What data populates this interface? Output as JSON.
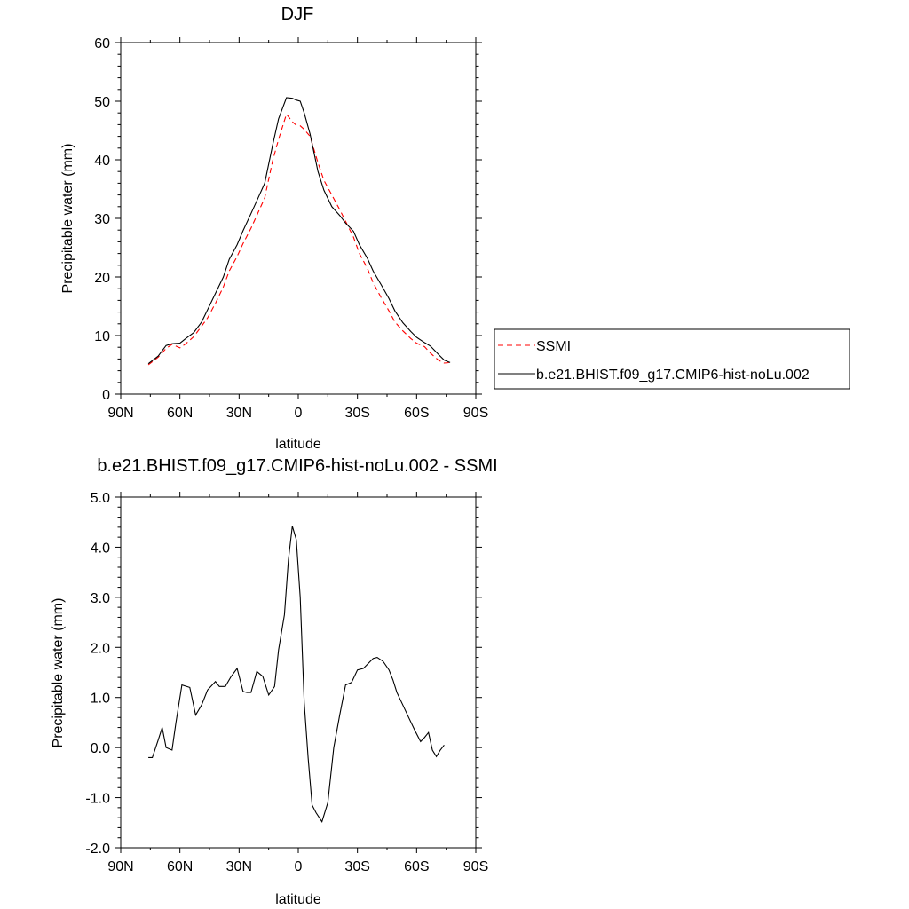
{
  "chart_data": [
    {
      "type": "line",
      "title": "DJF",
      "xlabel": "latitude",
      "ylabel": "Precipitable water (mm)",
      "xlim": [
        90,
        -90
      ],
      "ylim": [
        0,
        60
      ],
      "x_ticks": [
        90,
        60,
        30,
        0,
        -30,
        -60,
        -90
      ],
      "x_tick_labels": [
        "90N",
        "60N",
        "30N",
        "0",
        "30S",
        "60S",
        "90S"
      ],
      "y_ticks": [
        0,
        10,
        20,
        30,
        40,
        50,
        60
      ],
      "y_tick_labels": [
        "0",
        "10",
        "20",
        "30",
        "40",
        "50",
        "60"
      ],
      "legend": "right",
      "grid": false,
      "series": [
        {
          "name": "SSMI",
          "color": "#ff0000",
          "dash": "dashed",
          "x": [
            76,
            71,
            67,
            64,
            60,
            57,
            53,
            49,
            46,
            42,
            38,
            35,
            31,
            28,
            24,
            21,
            17,
            13,
            10,
            6,
            3,
            1,
            -1,
            -3,
            -6,
            -10,
            -13,
            -17,
            -21,
            -24,
            -28,
            -31,
            -35,
            -38,
            -42,
            -46,
            -49,
            -53,
            -57,
            -60,
            -64,
            -67,
            -71,
            -74,
            -77
          ],
          "y": [
            5.0,
            6.3,
            7.8,
            8.5,
            7.9,
            8.6,
            9.8,
            11.6,
            13.0,
            15.5,
            18.3,
            21.0,
            23.5,
            25.7,
            28.3,
            30.5,
            33.5,
            39.8,
            43.5,
            47.8,
            46.5,
            45.9,
            45.8,
            45.2,
            44.0,
            39.5,
            36.5,
            34.0,
            31.5,
            29.5,
            26.8,
            24.0,
            21.5,
            19.0,
            16.5,
            14.2,
            12.3,
            10.8,
            9.5,
            8.7,
            8.1,
            7.0,
            5.8,
            5.3,
            5.4
          ]
        },
        {
          "name": "b.e21.BHIST.f09_g17.CMIP6-hist-noLu.002",
          "color": "#000000",
          "dash": "solid",
          "x": [
            76,
            71,
            67,
            64,
            60,
            57,
            53,
            49,
            46,
            42,
            38,
            35,
            31,
            28,
            24,
            21,
            17,
            13,
            10,
            6,
            3,
            1,
            -1,
            -3,
            -6,
            -10,
            -13,
            -17,
            -21,
            -24,
            -28,
            -31,
            -35,
            -38,
            -42,
            -46,
            -49,
            -53,
            -57,
            -60,
            -64,
            -67,
            -71,
            -74,
            -77
          ],
          "y": [
            5.2,
            6.5,
            8.3,
            8.6,
            8.7,
            9.5,
            10.5,
            12.3,
            14.4,
            17.2,
            20.0,
            23.0,
            25.5,
            27.9,
            30.8,
            33.0,
            36.0,
            42.5,
            47.0,
            50.6,
            50.5,
            50.2,
            50.0,
            48.0,
            44.4,
            38.0,
            34.8,
            32.0,
            30.5,
            29.2,
            27.8,
            25.5,
            23.2,
            21.0,
            18.7,
            16.3,
            14.2,
            12.2,
            10.7,
            9.7,
            8.8,
            8.2,
            6.8,
            5.8,
            5.4
          ]
        }
      ]
    },
    {
      "type": "line",
      "title": "b.e21.BHIST.f09_g17.CMIP6-hist-noLu.002 - SSMI",
      "xlabel": "latitude",
      "ylabel": "Precipitable water (mm)",
      "xlim": [
        90,
        -90
      ],
      "ylim": [
        -2.0,
        5.0
      ],
      "x_ticks": [
        90,
        60,
        30,
        0,
        -30,
        -60,
        -90
      ],
      "x_tick_labels": [
        "90N",
        "60N",
        "30N",
        "0",
        "30S",
        "60S",
        "90S"
      ],
      "y_ticks": [
        -2.0,
        -1.0,
        0.0,
        1.0,
        2.0,
        3.0,
        4.0,
        5.0
      ],
      "y_tick_labels": [
        "-2.0",
        "-1.0",
        "0.0",
        "1.0",
        "2.0",
        "3.0",
        "4.0",
        "5.0"
      ],
      "grid": false,
      "series": [
        {
          "color": "#000000",
          "dash": "solid",
          "x": [
            76,
            74,
            71,
            69,
            67,
            64,
            62,
            59,
            55,
            52,
            49,
            46,
            42,
            40,
            37,
            34,
            31,
            28,
            26,
            24,
            21,
            18,
            15,
            12,
            10,
            7,
            5,
            3,
            1,
            -1,
            -3,
            -5,
            -7,
            -9,
            -12,
            -15,
            -18,
            -21,
            -24,
            -27,
            -30,
            -33,
            -36,
            -38,
            -40,
            -43,
            -46,
            -48,
            -50,
            -53,
            -56,
            -59,
            -62,
            -64,
            -66,
            -68,
            -70,
            -72,
            -74
          ],
          "y": [
            -0.2,
            -0.2,
            0.15,
            0.4,
            0.0,
            -0.05,
            0.5,
            1.25,
            1.2,
            0.65,
            0.85,
            1.15,
            1.32,
            1.22,
            1.22,
            1.42,
            1.58,
            1.12,
            1.1,
            1.1,
            1.52,
            1.42,
            1.05,
            1.22,
            1.95,
            2.65,
            3.75,
            4.42,
            4.15,
            3.0,
            0.9,
            -0.2,
            -1.15,
            -1.3,
            -1.48,
            -1.1,
            0.0,
            0.65,
            1.25,
            1.3,
            1.55,
            1.58,
            1.7,
            1.78,
            1.8,
            1.72,
            1.55,
            1.35,
            1.1,
            0.85,
            0.6,
            0.35,
            0.12,
            0.2,
            0.3,
            -0.05,
            -0.18,
            -0.05,
            0.05
          ]
        }
      ]
    }
  ]
}
